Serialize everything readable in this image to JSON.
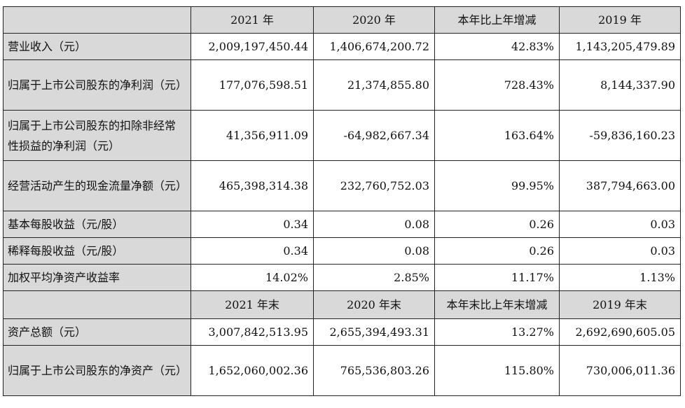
{
  "header1": [
    "2021 年",
    "2020 年",
    "本年比上年增减",
    "2019 年"
  ],
  "header2": [
    "2021 年末",
    "2020 年末",
    "本年末比上年末增减",
    "2019 年末"
  ],
  "rows1": [
    {
      "label": "营业收入（元）",
      "values": [
        "2,009,197,450.44",
        "1,406,674,200.72",
        "42.83%",
        "1,143,205,479.89"
      ]
    },
    {
      "label": "归属于上市公司股东的净利润（元）",
      "values": [
        "177,076,598.51",
        "21,374,855.80",
        "728.43%",
        "8,144,337.90"
      ]
    },
    {
      "label": "归属于上市公司股东的扣除非经常性损益的净利润（元）",
      "values": [
        "41,356,911.09",
        "-64,982,667.34",
        "163.64%",
        "-59,836,160.23"
      ]
    },
    {
      "label": "经营活动产生的现金流量净额（元）",
      "values": [
        "465,398,314.38",
        "232,760,752.03",
        "99.95%",
        "387,794,663.00"
      ]
    },
    {
      "label": "基本每股收益（元/股）",
      "values": [
        "0.34",
        "0.08",
        "0.26",
        "0.03"
      ]
    },
    {
      "label": "稀释每股收益（元/股）",
      "values": [
        "0.34",
        "0.08",
        "0.26",
        "0.03"
      ]
    },
    {
      "label": "加权平均净资产收益率",
      "values": [
        "14.02%",
        "2.85%",
        "11.17%",
        "1.13%"
      ]
    }
  ],
  "rows2": [
    {
      "label": "资产总额（元）",
      "values": [
        "3,007,842,513.95",
        "2,655,394,493.31",
        "13.27%",
        "2,692,690,605.05"
      ]
    },
    {
      "label": "归属于上市公司股东的净资产（元）",
      "values": [
        "1,652,060,002.36",
        "765,536,803.26",
        "115.80%",
        "730,006,011.36"
      ]
    }
  ]
}
